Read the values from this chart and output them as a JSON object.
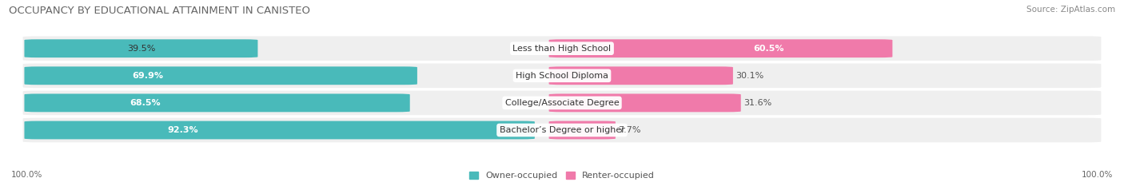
{
  "title": "OCCUPANCY BY EDUCATIONAL ATTAINMENT IN CANISTEO",
  "source": "Source: ZipAtlas.com",
  "categories": [
    "Less than High School",
    "High School Diploma",
    "College/Associate Degree",
    "Bachelor’s Degree or higher"
  ],
  "owner_pct": [
    39.5,
    69.9,
    68.5,
    92.3
  ],
  "renter_pct": [
    60.5,
    30.1,
    31.6,
    7.7
  ],
  "owner_color": "#49BABA",
  "renter_color": "#F07AAA",
  "bg_color": "#FFFFFF",
  "row_bg_color": "#EFEFEF",
  "title_fontsize": 9.5,
  "source_fontsize": 7.5,
  "pct_fontsize": 8,
  "cat_fontsize": 8,
  "legend_fontsize": 8,
  "bar_height": 0.62,
  "legend_owner": "Owner-occupied",
  "legend_renter": "Renter-occupied",
  "axis_label_left": "100.0%",
  "axis_label_right": "100.0%"
}
